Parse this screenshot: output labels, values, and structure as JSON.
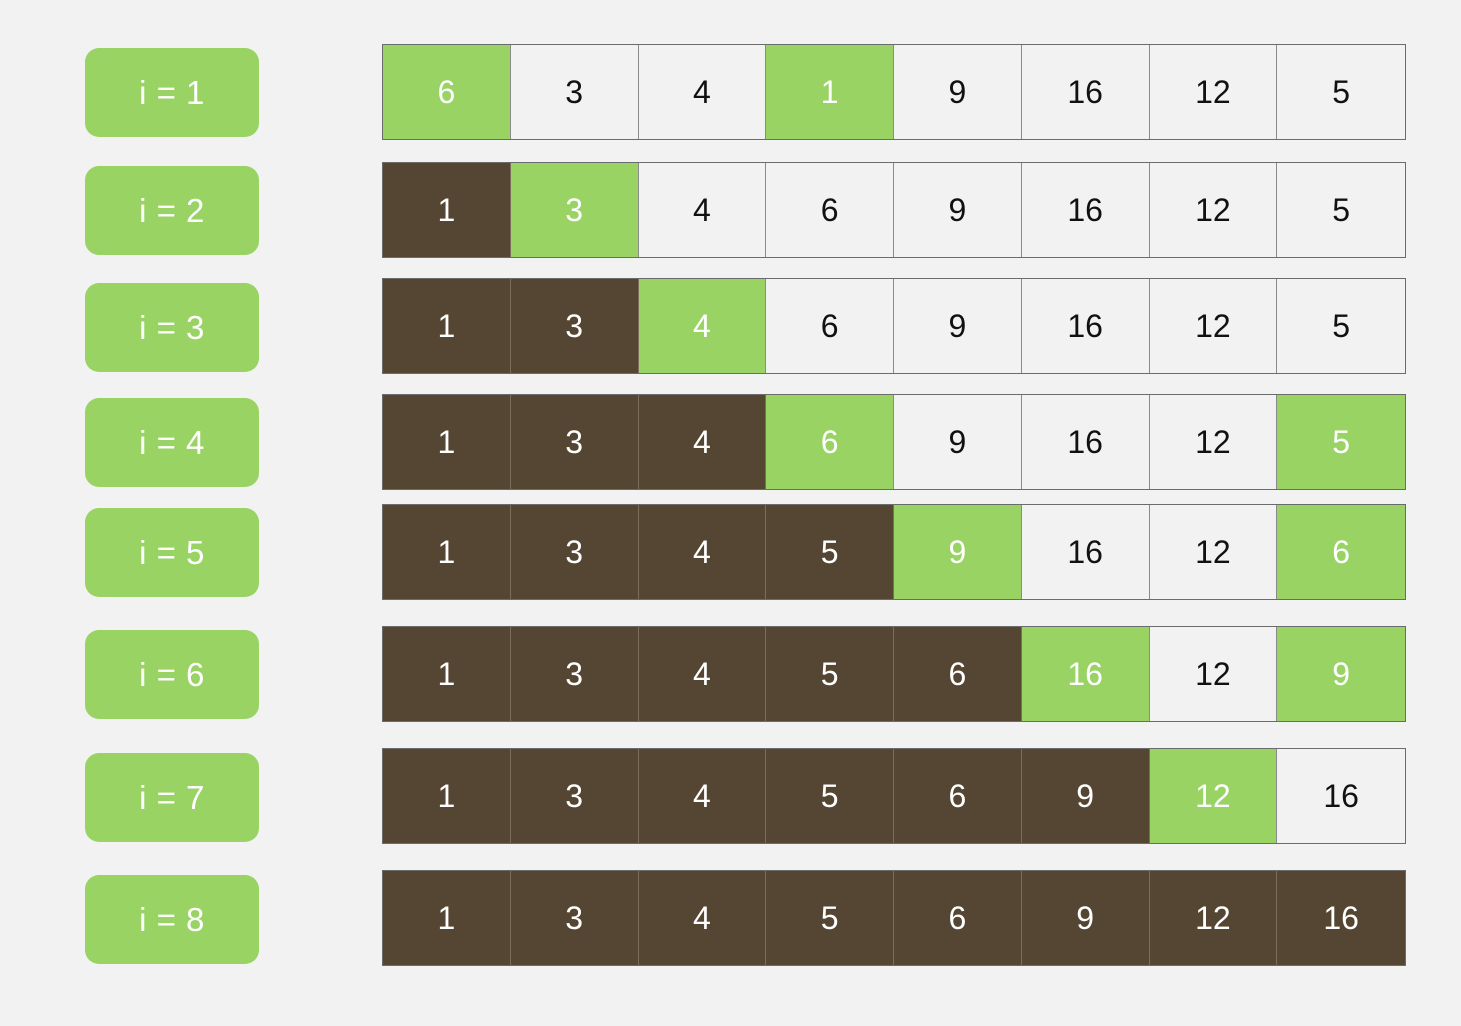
{
  "colors": {
    "background": "#f2f2f2",
    "label_bg": "#98d363",
    "sorted": "#544632",
    "active": "#98d363",
    "unsorted": "#f2f2f2"
  },
  "steps": [
    {
      "label": "i = 1",
      "cells": [
        {
          "value": "6",
          "state": "active"
        },
        {
          "value": "3",
          "state": "unsorted"
        },
        {
          "value": "4",
          "state": "unsorted"
        },
        {
          "value": "1",
          "state": "active"
        },
        {
          "value": "9",
          "state": "unsorted"
        },
        {
          "value": "16",
          "state": "unsorted"
        },
        {
          "value": "12",
          "state": "unsorted"
        },
        {
          "value": "5",
          "state": "unsorted"
        }
      ]
    },
    {
      "label": "i = 2",
      "cells": [
        {
          "value": "1",
          "state": "sorted"
        },
        {
          "value": "3",
          "state": "active"
        },
        {
          "value": "4",
          "state": "unsorted"
        },
        {
          "value": "6",
          "state": "unsorted"
        },
        {
          "value": "9",
          "state": "unsorted"
        },
        {
          "value": "16",
          "state": "unsorted"
        },
        {
          "value": "12",
          "state": "unsorted"
        },
        {
          "value": "5",
          "state": "unsorted"
        }
      ]
    },
    {
      "label": "i = 3",
      "cells": [
        {
          "value": "1",
          "state": "sorted"
        },
        {
          "value": "3",
          "state": "sorted"
        },
        {
          "value": "4",
          "state": "active"
        },
        {
          "value": "6",
          "state": "unsorted"
        },
        {
          "value": "9",
          "state": "unsorted"
        },
        {
          "value": "16",
          "state": "unsorted"
        },
        {
          "value": "12",
          "state": "unsorted"
        },
        {
          "value": "5",
          "state": "unsorted"
        }
      ]
    },
    {
      "label": "i = 4",
      "cells": [
        {
          "value": "1",
          "state": "sorted"
        },
        {
          "value": "3",
          "state": "sorted"
        },
        {
          "value": "4",
          "state": "sorted"
        },
        {
          "value": "6",
          "state": "active"
        },
        {
          "value": "9",
          "state": "unsorted"
        },
        {
          "value": "16",
          "state": "unsorted"
        },
        {
          "value": "12",
          "state": "unsorted"
        },
        {
          "value": "5",
          "state": "active"
        }
      ]
    },
    {
      "label": "i = 5",
      "cells": [
        {
          "value": "1",
          "state": "sorted"
        },
        {
          "value": "3",
          "state": "sorted"
        },
        {
          "value": "4",
          "state": "sorted"
        },
        {
          "value": "5",
          "state": "sorted"
        },
        {
          "value": "9",
          "state": "active"
        },
        {
          "value": "16",
          "state": "unsorted"
        },
        {
          "value": "12",
          "state": "unsorted"
        },
        {
          "value": "6",
          "state": "active"
        }
      ]
    },
    {
      "label": "i = 6",
      "cells": [
        {
          "value": "1",
          "state": "sorted"
        },
        {
          "value": "3",
          "state": "sorted"
        },
        {
          "value": "4",
          "state": "sorted"
        },
        {
          "value": "5",
          "state": "sorted"
        },
        {
          "value": "6",
          "state": "sorted"
        },
        {
          "value": "16",
          "state": "active"
        },
        {
          "value": "12",
          "state": "unsorted"
        },
        {
          "value": "9",
          "state": "active"
        }
      ]
    },
    {
      "label": "i = 7",
      "cells": [
        {
          "value": "1",
          "state": "sorted"
        },
        {
          "value": "3",
          "state": "sorted"
        },
        {
          "value": "4",
          "state": "sorted"
        },
        {
          "value": "5",
          "state": "sorted"
        },
        {
          "value": "6",
          "state": "sorted"
        },
        {
          "value": "9",
          "state": "sorted"
        },
        {
          "value": "12",
          "state": "active"
        },
        {
          "value": "16",
          "state": "unsorted"
        }
      ]
    },
    {
      "label": "i = 8",
      "cells": [
        {
          "value": "1",
          "state": "sorted"
        },
        {
          "value": "3",
          "state": "sorted"
        },
        {
          "value": "4",
          "state": "sorted"
        },
        {
          "value": "5",
          "state": "sorted"
        },
        {
          "value": "6",
          "state": "sorted"
        },
        {
          "value": "9",
          "state": "sorted"
        },
        {
          "value": "12",
          "state": "sorted"
        },
        {
          "value": "16",
          "state": "sorted"
        }
      ]
    }
  ]
}
